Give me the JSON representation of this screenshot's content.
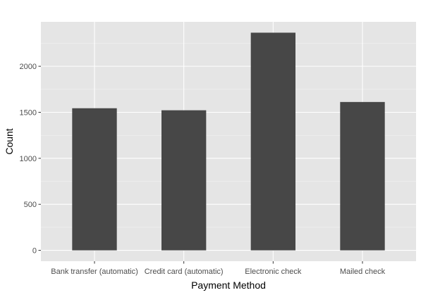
{
  "chart_data": {
    "type": "bar",
    "categories": [
      "Bank transfer (automatic)",
      "Credit card (automatic)",
      "Electronic check",
      "Mailed check"
    ],
    "values": [
      1544,
      1522,
      2365,
      1612
    ],
    "title": "",
    "xlabel": "Payment Method",
    "ylabel": "Count",
    "ylim": [
      -118,
      2483
    ],
    "yticks": [
      0,
      500,
      1000,
      1500,
      2000
    ],
    "ytick_labels": [
      "0",
      "500",
      "1000",
      "1500",
      "2000"
    ],
    "grid": true,
    "legend": "none",
    "colors": {
      "bar": "#474747",
      "panel": "#e5e5e5",
      "grid_major": "#ffffff",
      "grid_minor": "#f2f2f2",
      "tick_text": "#4d4d4d",
      "axis_title": "#000000"
    }
  }
}
